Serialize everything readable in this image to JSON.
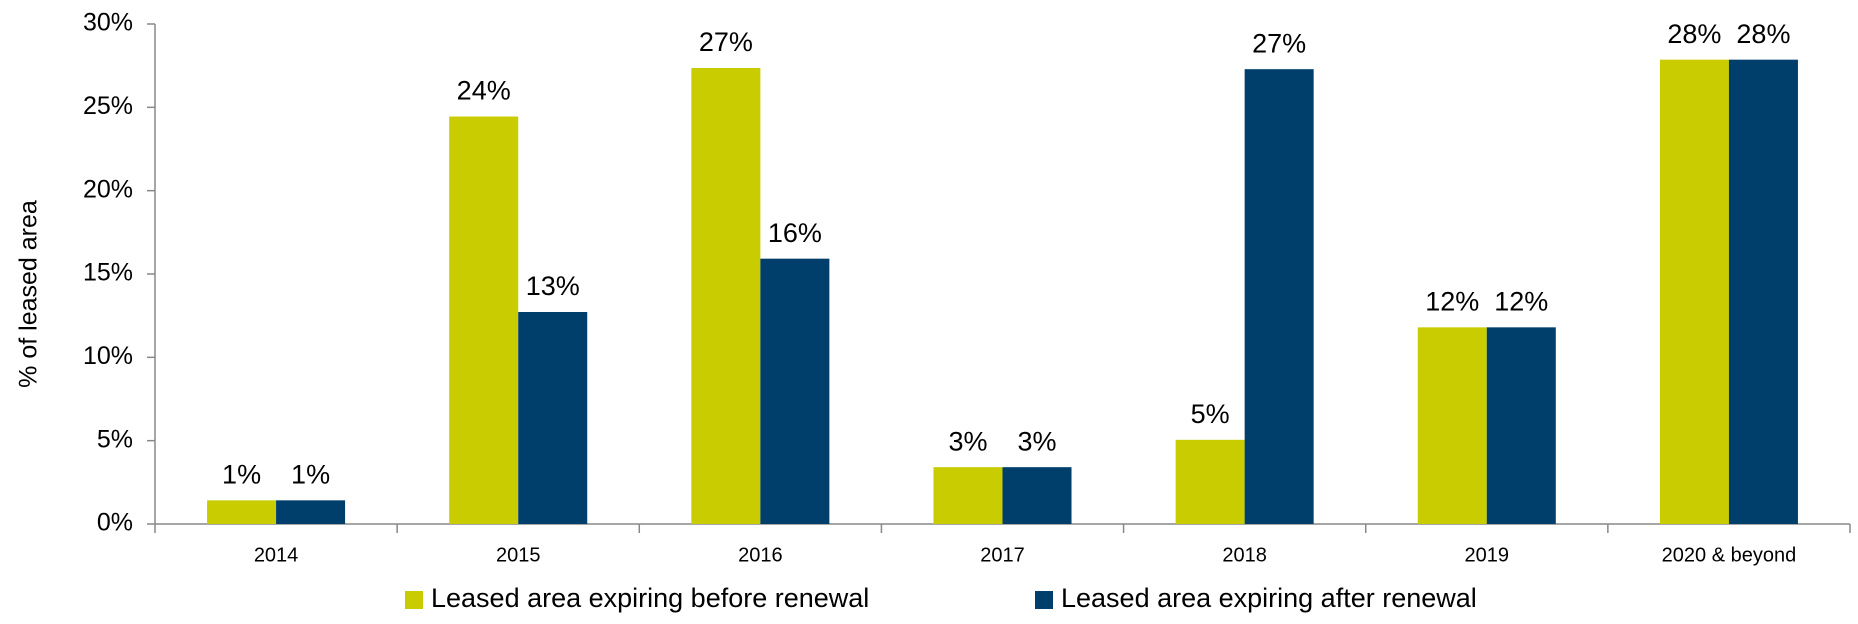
{
  "chart_data": {
    "type": "bar",
    "y_label": "% of leased area",
    "categories": [
      "2014",
      "2015",
      "2016",
      "2017",
      "2018",
      "2019",
      "2020 & beyond"
    ],
    "series": [
      {
        "name": "Leased area expiring before renewal",
        "color": "#c8cc00",
        "values": [
          1.42,
          24.45,
          27.36,
          3.41,
          5.05,
          11.8,
          27.86
        ],
        "value_labels": [
          "1%",
          "24%",
          "27%",
          "3%",
          "5%",
          "12%",
          "28%"
        ]
      },
      {
        "name": "Leased area expiring after renewal",
        "color": "#003f6b",
        "values": [
          1.42,
          12.72,
          15.92,
          3.41,
          27.29,
          11.8,
          27.86
        ],
        "value_labels": [
          "1%",
          "13%",
          "16%",
          "3%",
          "27%",
          "12%",
          "28%"
        ]
      }
    ],
    "ylim": [
      0,
      30
    ],
    "yticks": [
      {
        "value": 0,
        "label": "0%"
      },
      {
        "value": 5,
        "label": "5%"
      },
      {
        "value": 10,
        "label": "10%"
      },
      {
        "value": 15,
        "label": "15%"
      },
      {
        "value": 20,
        "label": "20%"
      },
      {
        "value": 25,
        "label": "25%"
      },
      {
        "value": 30,
        "label": "30%"
      }
    ],
    "grid": false,
    "legend": "bottom"
  }
}
